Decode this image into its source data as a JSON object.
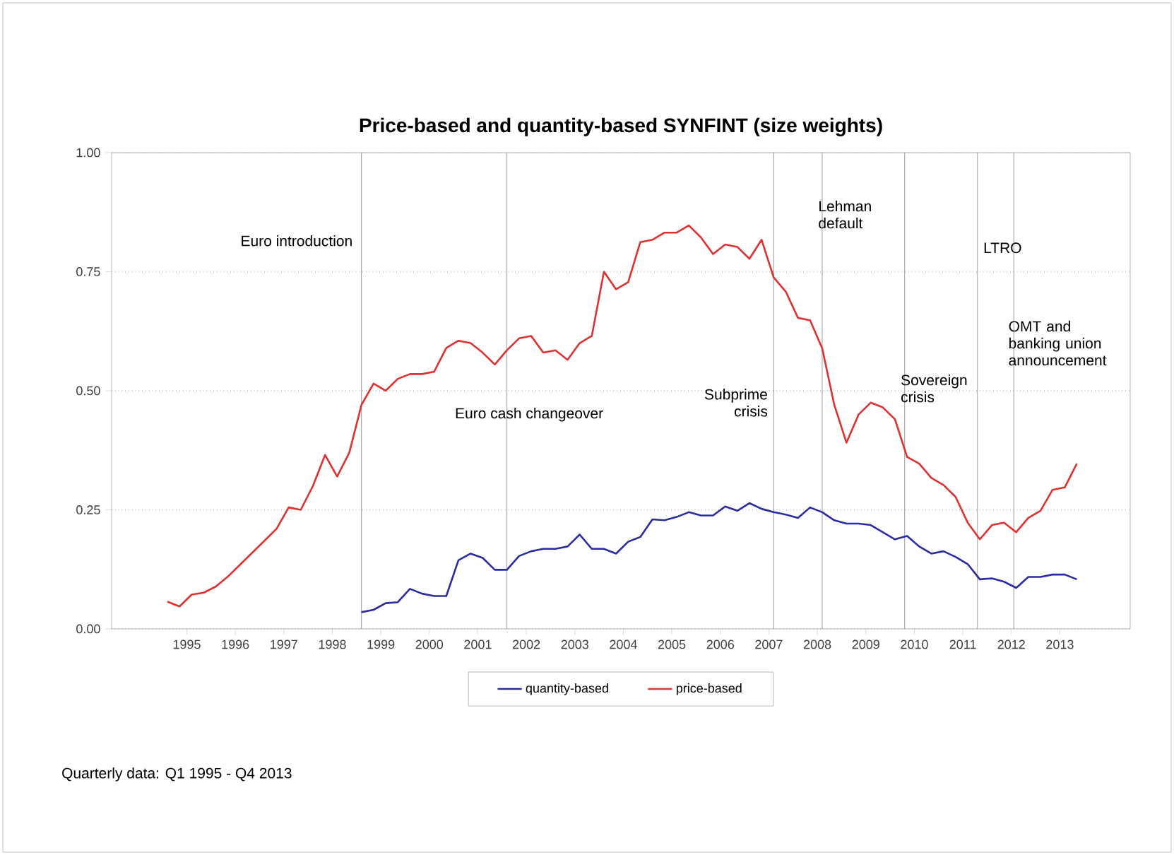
{
  "chart_data": {
    "type": "line",
    "title": "Price-based and quantity-based SYNFINT (size weights)",
    "xlim": [
      1993.85,
      2014.85
    ],
    "xticks": [
      {
        "value": 1995.4,
        "label": "1995"
      },
      {
        "value": 1996.4,
        "label": "1996"
      },
      {
        "value": 1997.4,
        "label": "1997"
      },
      {
        "value": 1998.4,
        "label": "1998"
      },
      {
        "value": 1999.4,
        "label": "1999"
      },
      {
        "value": 2000.4,
        "label": "2000"
      },
      {
        "value": 2001.4,
        "label": "2001"
      },
      {
        "value": 2002.4,
        "label": "2002"
      },
      {
        "value": 2003.4,
        "label": "2003"
      },
      {
        "value": 2004.4,
        "label": "2004"
      },
      {
        "value": 2005.4,
        "label": "2005"
      },
      {
        "value": 2006.4,
        "label": "2006"
      },
      {
        "value": 2007.4,
        "label": "2007"
      },
      {
        "value": 2008.4,
        "label": "2008"
      },
      {
        "value": 2009.4,
        "label": "2009"
      },
      {
        "value": 2010.4,
        "label": "2010"
      },
      {
        "value": 2011.4,
        "label": "2011"
      },
      {
        "value": 2012.4,
        "label": "2012"
      },
      {
        "value": 2013.4,
        "label": "2013"
      }
    ],
    "ylim": [
      0,
      1
    ],
    "yticks": [
      {
        "value": 0,
        "label": "0.00"
      },
      {
        "value": 0.25,
        "label": "0.25"
      },
      {
        "value": 0.5,
        "label": "0.50"
      },
      {
        "value": 0.75,
        "label": "0.75"
      },
      {
        "value": 1,
        "label": "1.00"
      }
    ],
    "grid": "y",
    "legend": "bottom",
    "marker": "none",
    "line_style": "solid",
    "series": [
      {
        "name": "quantity-based",
        "color": "#2b2ba6",
        "x": [
          1999,
          1999.25,
          1999.5,
          1999.75,
          2000,
          2000.25,
          2000.5,
          2000.75,
          2001,
          2001.25,
          2001.5,
          2001.75,
          2002,
          2002.25,
          2002.5,
          2002.75,
          2003,
          2003.25,
          2003.5,
          2003.75,
          2004,
          2004.25,
          2004.5,
          2004.75,
          2005,
          2005.25,
          2005.5,
          2005.75,
          2006,
          2006.25,
          2006.5,
          2006.75,
          2007,
          2007.25,
          2007.5,
          2007.75,
          2008,
          2008.25,
          2008.5,
          2008.75,
          2009,
          2009.25,
          2009.5,
          2009.75,
          2010,
          2010.25,
          2010.5,
          2010.75,
          2011,
          2011.25,
          2011.5,
          2011.75,
          2012,
          2012.25,
          2012.5,
          2012.75,
          2013,
          2013.25,
          2013.5,
          2013.75
        ],
        "values": [
          0.035,
          0.04,
          0.054,
          0.056,
          0.084,
          0.074,
          0.069,
          0.069,
          0.144,
          0.158,
          0.149,
          0.124,
          0.124,
          0.153,
          0.163,
          0.168,
          0.168,
          0.173,
          0.198,
          0.168,
          0.168,
          0.158,
          0.183,
          0.193,
          0.23,
          0.228,
          0.235,
          0.245,
          0.238,
          0.238,
          0.257,
          0.248,
          0.264,
          0.252,
          0.245,
          0.24,
          0.233,
          0.255,
          0.245,
          0.228,
          0.221,
          0.221,
          0.218,
          0.203,
          0.188,
          0.195,
          0.173,
          0.158,
          0.163,
          0.151,
          0.136,
          0.104,
          0.106,
          0.099,
          0.086,
          0.109,
          0.109,
          0.114,
          0.114,
          0.104
        ]
      },
      {
        "name": "price-based",
        "color": "#e03030",
        "x": [
          1995,
          1995.25,
          1995.5,
          1995.75,
          1996,
          1996.25,
          1996.5,
          1996.75,
          1997,
          1997.25,
          1997.5,
          1997.75,
          1998,
          1998.25,
          1998.5,
          1998.75,
          1999,
          1999.25,
          1999.5,
          1999.75,
          2000,
          2000.25,
          2000.5,
          2000.75,
          2001,
          2001.25,
          2001.5,
          2001.75,
          2002,
          2002.25,
          2002.5,
          2002.75,
          2003,
          2003.25,
          2003.5,
          2003.75,
          2004,
          2004.25,
          2004.5,
          2004.75,
          2005,
          2005.25,
          2005.5,
          2005.75,
          2006,
          2006.25,
          2006.5,
          2006.75,
          2007,
          2007.25,
          2007.5,
          2007.75,
          2008,
          2008.25,
          2008.5,
          2008.75,
          2009,
          2009.25,
          2009.5,
          2009.75,
          2010,
          2010.25,
          2010.5,
          2010.75,
          2011,
          2011.25,
          2011.5,
          2011.75,
          2012,
          2012.25,
          2012.5,
          2012.75,
          2013,
          2013.25,
          2013.5,
          2013.75
        ],
        "values": [
          0.057,
          0.047,
          0.072,
          0.076,
          0.089,
          0.11,
          0.135,
          0.16,
          0.185,
          0.21,
          0.255,
          0.25,
          0.3,
          0.365,
          0.32,
          0.37,
          0.47,
          0.515,
          0.5,
          0.525,
          0.535,
          0.535,
          0.54,
          0.59,
          0.605,
          0.6,
          0.58,
          0.555,
          0.585,
          0.61,
          0.615,
          0.58,
          0.585,
          0.565,
          0.6,
          0.615,
          0.75,
          0.713,
          0.728,
          0.812,
          0.817,
          0.832,
          0.832,
          0.847,
          0.822,
          0.787,
          0.807,
          0.802,
          0.777,
          0.817,
          0.738,
          0.708,
          0.653,
          0.648,
          0.589,
          0.47,
          0.391,
          0.45,
          0.475,
          0.465,
          0.44,
          0.361,
          0.347,
          0.317,
          0.302,
          0.277,
          0.223,
          0.188,
          0.218,
          0.223,
          0.203,
          0.233,
          0.248,
          0.292,
          0.297,
          0.347
        ]
      }
    ],
    "ref_lines": [
      {
        "axis": "x",
        "value": 1999,
        "label": "Euro introduction",
        "color": "#808080"
      },
      {
        "axis": "x",
        "value": 2002,
        "label": "Euro cash changeover",
        "color": "#808080"
      },
      {
        "axis": "x",
        "value": 2007.5,
        "label": "Subprime crisis",
        "color": "#808080"
      },
      {
        "axis": "x",
        "value": 2008.5,
        "label": "Lehman default",
        "color": "#808080"
      },
      {
        "axis": "x",
        "value": 2010.2,
        "label": "Sovereign crisis",
        "color": "#808080"
      },
      {
        "axis": "x",
        "value": 2011.7,
        "label": "LTRO",
        "color": "#808080"
      },
      {
        "axis": "x",
        "value": 2012.45,
        "label": "OMT and banking union announcement",
        "color": "#808080"
      }
    ],
    "annotations": [
      "Quarterly data: Q1 1995 - Q4 2013"
    ]
  }
}
